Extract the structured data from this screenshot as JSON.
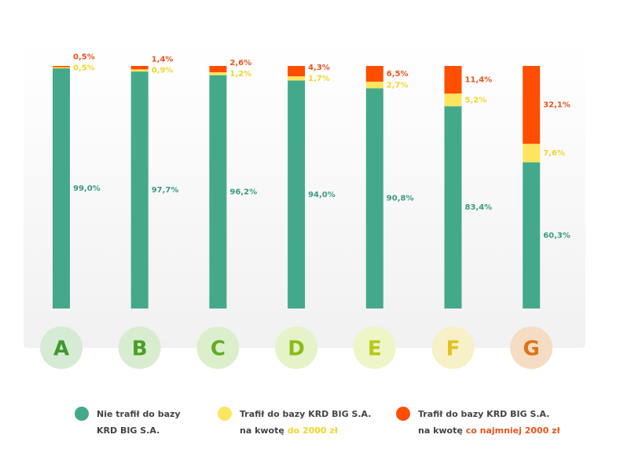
{
  "chart_data": {
    "type": "stacked-bar",
    "categories": [
      "A",
      "B",
      "C",
      "D",
      "E",
      "F",
      "G"
    ],
    "ylim": [
      0,
      100
    ],
    "series": [
      {
        "name": "Nie trafił do bazy",
        "subname": "KRD BIG S.A.",
        "color": "#44a98a",
        "label_color": "#3a9a80",
        "values": [
          99.0,
          97.7,
          96.2,
          94.0,
          90.8,
          83.4,
          60.3
        ],
        "value_labels": [
          "99,0%",
          "97,7%",
          "96,2%",
          "94,0%",
          "90,8%",
          "83,4%",
          "60,3%"
        ]
      },
      {
        "name": "Trafił do bazy KRD BIG S.A.",
        "subname": "na kwotę",
        "highlight": "do 2000 zł",
        "color": "#fde55e",
        "label_color": "#f2d52a",
        "values": [
          0.5,
          0.9,
          1.2,
          1.7,
          2.7,
          5.2,
          7.6
        ],
        "value_labels": [
          "0,5%",
          "0,9%",
          "1,2%",
          "1,7%",
          "2,7%",
          "5,2%",
          "7,6%"
        ]
      },
      {
        "name": "Trafił do bazy KRD BIG S.A.",
        "subname": "na kwotę",
        "highlight": "co najmniej 2000 zł",
        "color": "#ff4e00",
        "label_color": "#e8541c",
        "values": [
          0.5,
          1.4,
          2.6,
          4.3,
          6.5,
          11.4,
          32.1
        ],
        "value_labels": [
          "0,5%",
          "1,4%",
          "2,6%",
          "4,3%",
          "6,5%",
          "11,4%",
          "32,1%"
        ]
      }
    ]
  }
}
